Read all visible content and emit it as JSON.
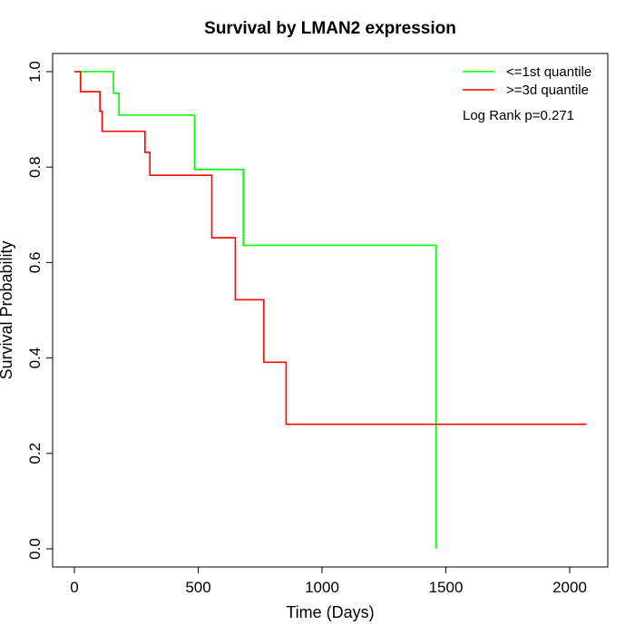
{
  "chart_data": {
    "type": "line",
    "title": "Survival by LMAN2 expression",
    "xlabel": "Time (Days)",
    "ylabel": "Survival Probability",
    "xlim": [
      0,
      2070
    ],
    "ylim": [
      0,
      1
    ],
    "x_ticks": [
      0,
      500,
      1000,
      1500,
      2000
    ],
    "y_ticks": [
      0.0,
      0.2,
      0.4,
      0.6,
      0.8,
      1.0
    ],
    "x_tick_labels": [
      "0",
      "500",
      "1000",
      "1500",
      "2000"
    ],
    "y_tick_labels": [
      "0.0",
      "0.2",
      "0.4",
      "0.6",
      "0.8",
      "1.0"
    ],
    "grid": false,
    "legend_position": "top-right",
    "annotation": "Log Rank p=0.271",
    "series": [
      {
        "name": "<=1st quantile",
        "color": "#00ff00",
        "step": true,
        "x": [
          0,
          158,
          180,
          485,
          682,
          1460,
          1460
        ],
        "y": [
          1.0,
          0.955,
          0.909,
          0.795,
          0.636,
          0.636,
          0.0
        ]
      },
      {
        "name": ">=3d quantile",
        "color": "#ff0000",
        "step": true,
        "x": [
          0,
          25,
          103,
          112,
          285,
          305,
          555,
          650,
          765,
          855,
          2068
        ],
        "y": [
          1.0,
          0.958,
          0.917,
          0.875,
          0.831,
          0.783,
          0.652,
          0.522,
          0.391,
          0.261,
          0.261
        ]
      }
    ]
  }
}
